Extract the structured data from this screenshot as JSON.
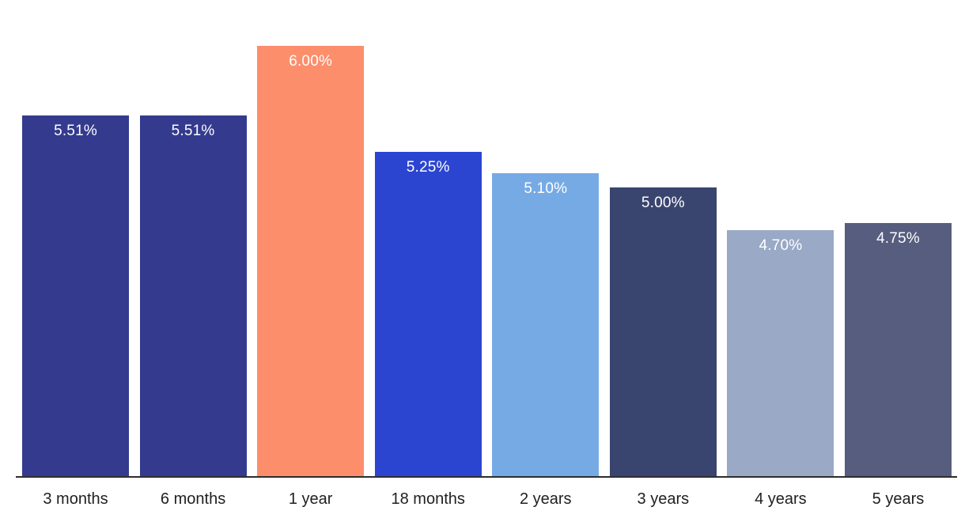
{
  "chart_data": {
    "type": "bar",
    "title": "",
    "xlabel": "",
    "ylabel": "",
    "categories": [
      "3 months",
      "6 months",
      "1 year",
      "18 months",
      "2 years",
      "3 years",
      "4 years",
      "5 years"
    ],
    "values": [
      5.51,
      5.51,
      6.0,
      5.25,
      5.1,
      5.0,
      4.7,
      4.75
    ],
    "value_labels": [
      "5.51%",
      "5.51%",
      "6.00%",
      "5.25%",
      "5.10%",
      "5.00%",
      "4.70%",
      "4.75%"
    ],
    "bar_colors": [
      "#343b8e",
      "#343b8e",
      "#fc8e6c",
      "#2c45d0",
      "#76aae4",
      "#3a456f",
      "#99a9c6",
      "#575d7f"
    ],
    "ylim": [
      2.97,
      6.32
    ],
    "grid": false,
    "legend": "none",
    "y_axis_visible": false,
    "value_label_color": "#ffffff",
    "category_label_color": "#1f1f1f",
    "axis_line_color": "#2d2d2d",
    "background": "#ffffff"
  }
}
